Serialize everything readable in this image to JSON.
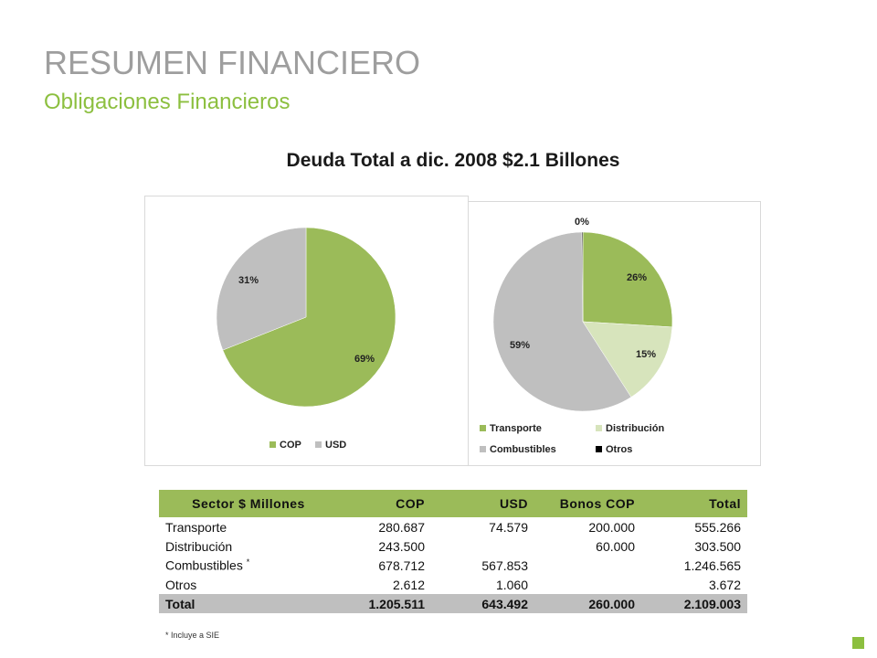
{
  "header": {
    "title": "RESUMEN FINANCIERO",
    "subtitle": "Obligaciones Financieros",
    "chart_title": "Deuda Total a dic. 2008 $2.1 Billones"
  },
  "colors": {
    "green": "#9bbb59",
    "light_green": "#d7e4bc",
    "grey": "#bfbfbf",
    "black": "#000000"
  },
  "chart_data": [
    {
      "type": "pie",
      "title": "",
      "legend_position": "bottom",
      "slices": [
        {
          "name": "COP",
          "value": 69,
          "label": "69%",
          "color": "#9bbb59"
        },
        {
          "name": "USD",
          "value": 31,
          "label": "31%",
          "color": "#bfbfbf"
        }
      ]
    },
    {
      "type": "pie",
      "title": "",
      "legend_position": "bottom",
      "slices": [
        {
          "name": "Transporte",
          "value": 26,
          "label": "26%",
          "color": "#9bbb59"
        },
        {
          "name": "Distribución",
          "value": 15,
          "label": "15%",
          "color": "#d7e4bc"
        },
        {
          "name": "Combustibles",
          "value": 59,
          "label": "59%",
          "color": "#bfbfbf"
        },
        {
          "name": "Otros",
          "value": 0.17,
          "label": "0%",
          "color": "#000000"
        }
      ]
    }
  ],
  "table": {
    "headers": [
      "Sector $ Millones",
      "COP",
      "USD",
      "Bonos COP",
      "Total"
    ],
    "rows": [
      {
        "sector": "Transporte",
        "mark": "",
        "cop": "280.687",
        "usd": "74.579",
        "bonos": "200.000",
        "total": "555.266"
      },
      {
        "sector": "Distribución",
        "mark": "",
        "cop": "243.500",
        "usd": "",
        "bonos": "60.000",
        "total": "303.500"
      },
      {
        "sector": "Combustibles",
        "mark": "*",
        "cop": "678.712",
        "usd": "567.853",
        "bonos": "",
        "total": "1.246.565"
      },
      {
        "sector": "Otros",
        "mark": "",
        "cop": "2.612",
        "usd": "1.060",
        "bonos": "",
        "total": "3.672"
      }
    ],
    "total": {
      "sector": "Total",
      "cop": "1.205.511",
      "usd": "643.492",
      "bonos": "260.000",
      "total": "2.109.003"
    }
  },
  "footnote": "* Incluye a SIE"
}
